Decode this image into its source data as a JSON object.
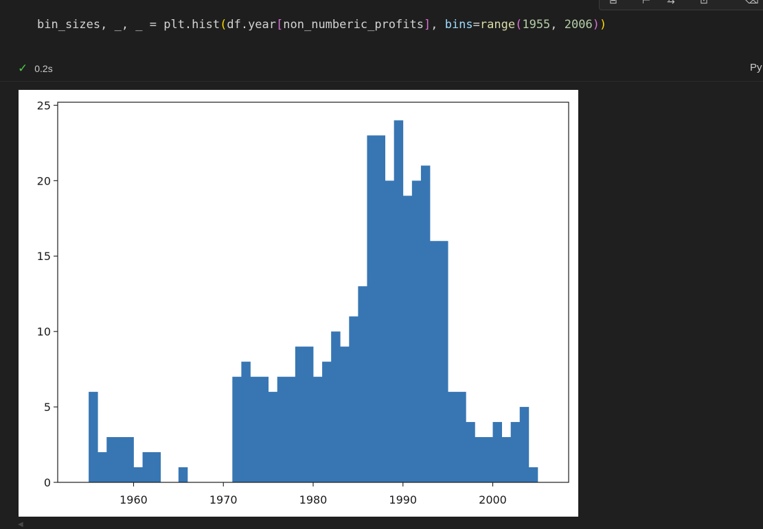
{
  "cell": {
    "code_tokens": [
      {
        "text": "bin_sizes, _, _ = plt.hist",
        "cls": "tk-plain"
      },
      {
        "text": "(",
        "cls": "tk-br1"
      },
      {
        "text": "df.year",
        "cls": "tk-plain"
      },
      {
        "text": "[",
        "cls": "tk-br2"
      },
      {
        "text": "non_numberic_profits",
        "cls": "tk-plain"
      },
      {
        "text": "]",
        "cls": "tk-br2"
      },
      {
        "text": ", ",
        "cls": "tk-plain"
      },
      {
        "text": "bins",
        "cls": "tk-var"
      },
      {
        "text": "=",
        "cls": "tk-plain"
      },
      {
        "text": "range",
        "cls": "tk-fn"
      },
      {
        "text": "(",
        "cls": "tk-br2"
      },
      {
        "text": "1955",
        "cls": "tk-num"
      },
      {
        "text": ", ",
        "cls": "tk-plain"
      },
      {
        "text": "2006",
        "cls": "tk-num"
      },
      {
        "text": ")",
        "cls": "tk-br2"
      },
      {
        "text": ")",
        "cls": "tk-br1"
      }
    ],
    "status_icon": "check-icon",
    "execution_time": "0.2s",
    "language": "Py"
  },
  "toolbar": {
    "icons": [
      "execute-above-icon",
      "execute-below-icon",
      "split-cell-icon",
      "more-icon",
      "delete-icon"
    ]
  },
  "chart_data": {
    "type": "bar",
    "bins_start": 1955,
    "bin_edges_range": [
      1955,
      2006
    ],
    "x": [
      1955,
      1956,
      1957,
      1958,
      1959,
      1960,
      1961,
      1962,
      1963,
      1964,
      1965,
      1966,
      1967,
      1968,
      1969,
      1970,
      1971,
      1972,
      1973,
      1974,
      1975,
      1976,
      1977,
      1978,
      1979,
      1980,
      1981,
      1982,
      1983,
      1984,
      1985,
      1986,
      1987,
      1988,
      1989,
      1990,
      1991,
      1992,
      1993,
      1994,
      1995,
      1996,
      1997,
      1998,
      1999,
      2000,
      2001,
      2002,
      2003,
      2004
    ],
    "values": [
      6,
      2,
      3,
      3,
      3,
      1,
      2,
      2,
      0,
      0,
      1,
      0,
      0,
      0,
      0,
      0,
      7,
      8,
      7,
      7,
      6,
      7,
      7,
      9,
      9,
      7,
      8,
      10,
      9,
      11,
      13,
      23,
      23,
      20,
      24,
      19,
      20,
      21,
      16,
      16,
      6,
      6,
      4,
      3,
      3,
      4,
      3,
      4,
      5,
      1
    ],
    "xlim": [
      1951.55,
      2008.45
    ],
    "ylim": [
      0,
      25.2
    ],
    "xticks": [
      1960,
      1970,
      1980,
      1990,
      2000
    ],
    "yticks": [
      0,
      5,
      10,
      15,
      20,
      25
    ],
    "bar_color": "#3776b3",
    "title": "",
    "xlabel": "",
    "ylabel": "",
    "grid": false
  }
}
